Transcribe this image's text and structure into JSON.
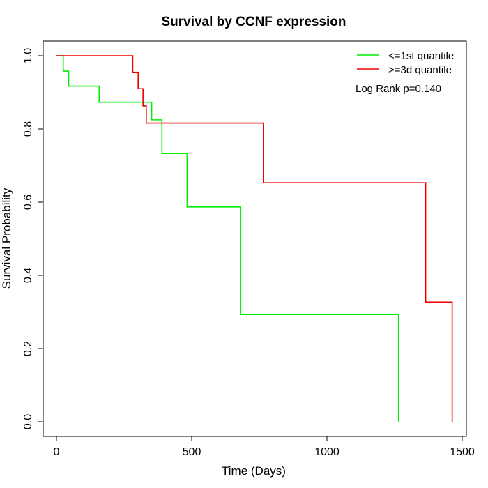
{
  "chart_data": {
    "type": "line",
    "subtype": "kaplan-meier step",
    "title": "Survival by CCNF expression",
    "xlabel": "Time (Days)",
    "ylabel": "Survival Probability",
    "xlim": [
      0,
      1500
    ],
    "ylim": [
      0,
      1
    ],
    "xticks": [
      0,
      500,
      1000,
      1500
    ],
    "xtick_labels": [
      "0",
      "500",
      "1000",
      "1500"
    ],
    "yticks": [
      0,
      0.2,
      0.4,
      0.6,
      0.8,
      1.0
    ],
    "ytick_labels": [
      "0.0",
      "0.2",
      "0.4",
      "0.6",
      "0.8",
      "1.0"
    ],
    "grid": false,
    "legend_position": "top-right",
    "annotation": "Log Rank p=0.140",
    "series": [
      {
        "name": "<=1st quantile",
        "color": "#00ee00",
        "steps": [
          [
            0,
            1.0
          ],
          [
            25,
            0.958
          ],
          [
            45,
            0.917
          ],
          [
            158,
            0.873
          ],
          [
            352,
            0.825
          ],
          [
            390,
            0.733
          ],
          [
            483,
            0.587
          ],
          [
            680,
            0.293
          ],
          [
            1265,
            0.0
          ]
        ],
        "end_time": 1265
      },
      {
        "name": ">=3d quantile",
        "color": "#ee0000",
        "steps": [
          [
            0,
            1.0
          ],
          [
            282,
            0.955
          ],
          [
            302,
            0.91
          ],
          [
            320,
            0.863
          ],
          [
            332,
            0.816
          ],
          [
            765,
            0.653
          ],
          [
            1365,
            0.327
          ],
          [
            1463,
            0.0
          ]
        ],
        "end_time": 1463
      }
    ]
  }
}
